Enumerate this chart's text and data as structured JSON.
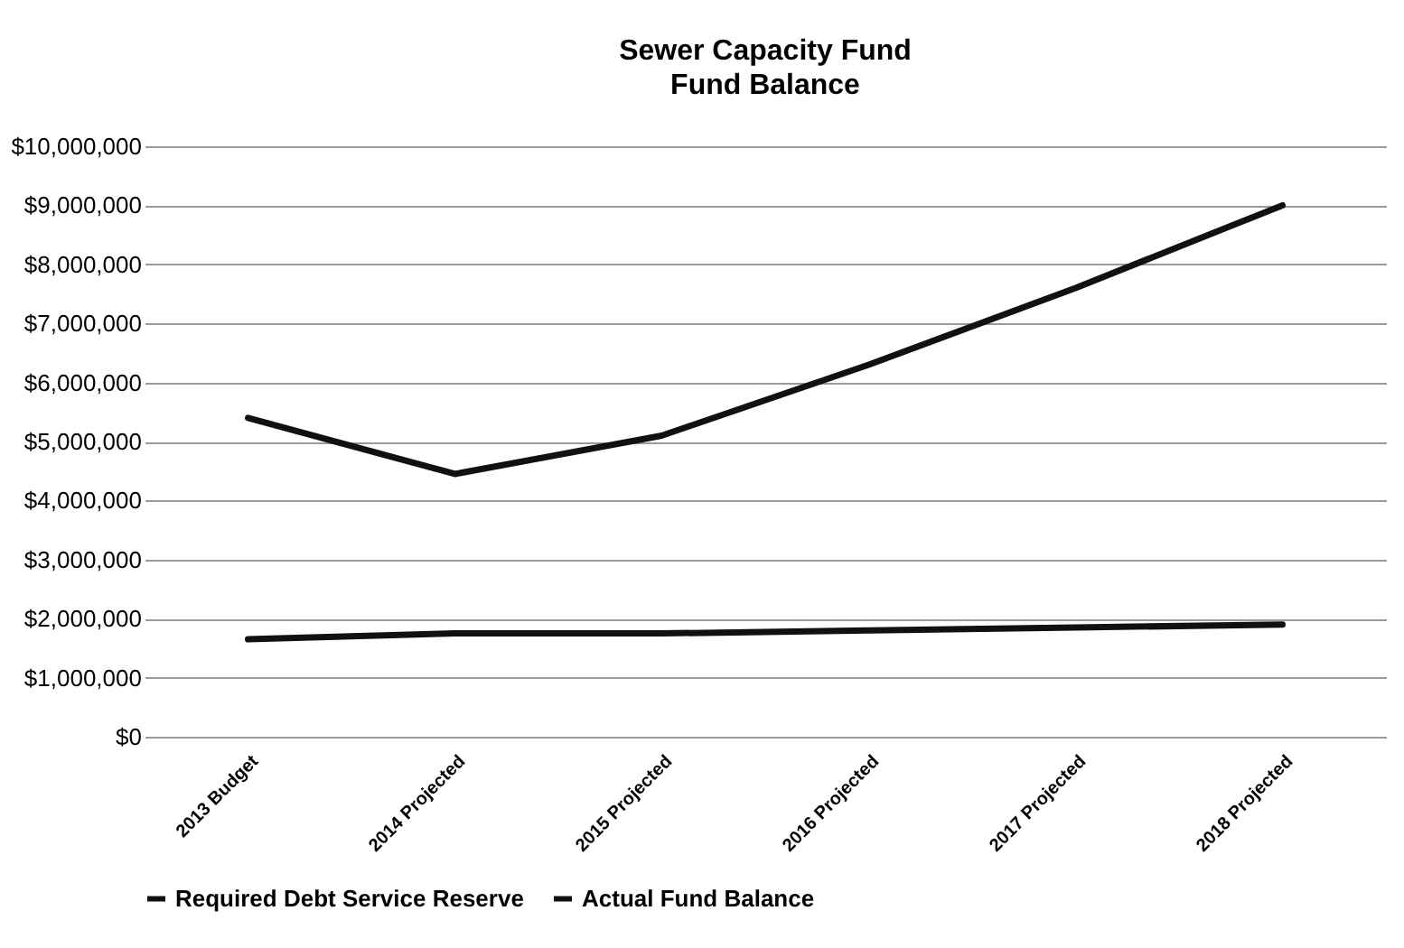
{
  "chart_data": {
    "type": "line",
    "title": "Sewer Capacity Fund",
    "subtitle": "Fund Balance",
    "categories": [
      "2013 Budget",
      "2014 Projected",
      "2015 Projected",
      "2016 Projected",
      "2017 Projected",
      "2018 Projected"
    ],
    "series": [
      {
        "name": "Required Debt Service Reserve",
        "color": "#111111",
        "values": [
          1650000,
          1750000,
          1750000,
          1800000,
          1850000,
          1900000
        ]
      },
      {
        "name": "Actual Fund Balance",
        "color": "#111111",
        "values": [
          5400000,
          4450000,
          5100000,
          6300000,
          7600000,
          9000000
        ]
      }
    ],
    "ylim": [
      0,
      10000000
    ],
    "yticks": [
      {
        "value": 0,
        "label": "$0"
      },
      {
        "value": 1000000,
        "label": "$1,000,000"
      },
      {
        "value": 2000000,
        "label": "$2,000,000"
      },
      {
        "value": 3000000,
        "label": "$3,000,000"
      },
      {
        "value": 4000000,
        "label": "$4,000,000"
      },
      {
        "value": 5000000,
        "label": "$5,000,000"
      },
      {
        "value": 6000000,
        "label": "$6,000,000"
      },
      {
        "value": 7000000,
        "label": "$7,000,000"
      },
      {
        "value": 8000000,
        "label": "$8,000,000"
      },
      {
        "value": 9000000,
        "label": "$9,000,000"
      },
      {
        "value": 10000000,
        "label": "$10,000,000"
      }
    ],
    "grid": "y",
    "legend": "bottom",
    "marker": "none",
    "line_style": "solid"
  }
}
